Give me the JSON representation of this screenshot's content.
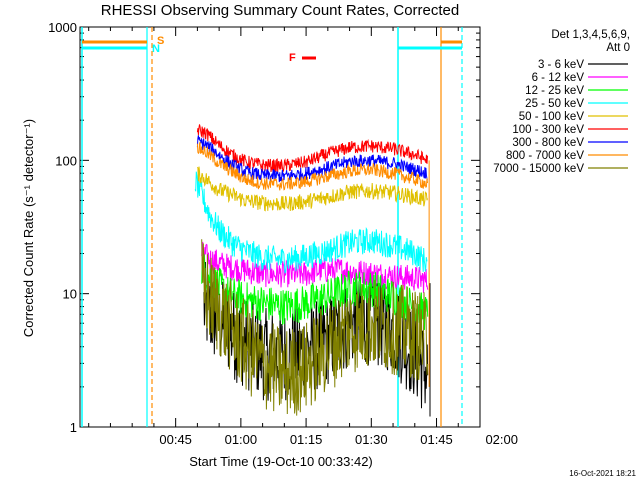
{
  "chart_data": {
    "type": "line",
    "title": "RHESSI Observing Summary Count Rates, Corrected",
    "xlabel": "Start Time (19-Oct-10 00:33:42)",
    "ylabel": "Corrected Count Rate (s⁻¹ detector⁻¹)",
    "y_scale": "log",
    "ylim": [
      1,
      1000
    ],
    "xlim_min": [
      -22,
      70
    ],
    "x_ticks": [
      "00:45",
      "01:00",
      "01:15",
      "01:30",
      "01:45",
      "02:00"
    ],
    "x_tick_minutes": [
      0,
      15,
      30,
      45,
      60,
      75
    ],
    "y_ticks": [
      1,
      10,
      100,
      1000
    ],
    "y_tick_labels": [
      "1",
      "10",
      "100",
      "1000"
    ],
    "legend_header": [
      "Det 1,3,4,5,6,9,",
      "Att 0"
    ],
    "legend_position": "top-right",
    "grid": false,
    "series": [
      {
        "name": "3 - 6 keV",
        "color": "#000000",
        "points": [
          [
            6.5,
            8
          ],
          [
            10,
            6
          ],
          [
            15,
            4.5
          ],
          [
            20,
            3.5
          ],
          [
            25,
            3.5
          ],
          [
            30,
            3.7
          ],
          [
            35,
            4.5
          ],
          [
            40,
            6
          ],
          [
            45,
            6.5
          ],
          [
            50,
            5.5
          ],
          [
            55,
            3.5
          ],
          [
            58,
            2.5
          ]
        ]
      },
      {
        "name": "6 - 12 keV",
        "color": "#ff00ff",
        "points": [
          [
            6,
            20
          ],
          [
            8,
            18
          ],
          [
            12,
            16
          ],
          [
            16,
            15
          ],
          [
            20,
            14
          ],
          [
            25,
            14
          ],
          [
            30,
            14
          ],
          [
            33,
            15
          ],
          [
            38,
            15
          ],
          [
            42,
            14.5
          ],
          [
            46,
            14
          ],
          [
            50,
            13.5
          ],
          [
            55,
            13
          ],
          [
            58,
            12.5
          ]
        ]
      },
      {
        "name": "12 - 25 keV",
        "color": "#00ff00",
        "points": [
          [
            6,
            16
          ],
          [
            8,
            13
          ],
          [
            12,
            10
          ],
          [
            16,
            9
          ],
          [
            20,
            8.5
          ],
          [
            25,
            8
          ],
          [
            30,
            8.5
          ],
          [
            35,
            9.5
          ],
          [
            40,
            11
          ],
          [
            45,
            11
          ],
          [
            50,
            9.5
          ],
          [
            55,
            8
          ],
          [
            58,
            7
          ]
        ]
      },
      {
        "name": "25 - 50 keV",
        "color": "#00ffff",
        "points": [
          [
            4.5,
            70
          ],
          [
            6,
            55
          ],
          [
            8,
            38
          ],
          [
            10,
            30
          ],
          [
            13,
            24
          ],
          [
            16,
            21
          ],
          [
            20,
            18.5
          ],
          [
            25,
            18
          ],
          [
            30,
            19
          ],
          [
            35,
            21
          ],
          [
            40,
            24
          ],
          [
            45,
            25
          ],
          [
            50,
            23
          ],
          [
            55,
            20
          ],
          [
            58,
            17
          ]
        ]
      },
      {
        "name": "50 - 100 keV",
        "color": "#e0c000",
        "points": [
          [
            5,
            80
          ],
          [
            7,
            72
          ],
          [
            10,
            60
          ],
          [
            13,
            55
          ],
          [
            16,
            50
          ],
          [
            20,
            48
          ],
          [
            25,
            47
          ],
          [
            30,
            49
          ],
          [
            35,
            53
          ],
          [
            40,
            58
          ],
          [
            45,
            59
          ],
          [
            50,
            57
          ],
          [
            55,
            53
          ],
          [
            58,
            50
          ]
        ]
      },
      {
        "name": "100 - 300 keV",
        "color": "#ff0000",
        "points": [
          [
            5,
            170
          ],
          [
            7,
            160
          ],
          [
            10,
            130
          ],
          [
            13,
            110
          ],
          [
            16,
            98
          ],
          [
            20,
            92
          ],
          [
            25,
            91
          ],
          [
            30,
            97
          ],
          [
            35,
            112
          ],
          [
            40,
            125
          ],
          [
            45,
            128
          ],
          [
            50,
            122
          ],
          [
            55,
            110
          ],
          [
            58,
            100
          ]
        ]
      },
      {
        "name": "300 - 800 keV",
        "color": "#0000ff",
        "points": [
          [
            5,
            140
          ],
          [
            7,
            130
          ],
          [
            10,
            110
          ],
          [
            13,
            92
          ],
          [
            16,
            82
          ],
          [
            20,
            77
          ],
          [
            25,
            76
          ],
          [
            30,
            80
          ],
          [
            35,
            88
          ],
          [
            40,
            98
          ],
          [
            45,
            100
          ],
          [
            50,
            95
          ],
          [
            55,
            85
          ],
          [
            58,
            80
          ]
        ]
      },
      {
        "name": "800 - 7000 keV",
        "color": "#ff8c00",
        "points": [
          [
            5,
            125
          ],
          [
            7,
            115
          ],
          [
            10,
            95
          ],
          [
            13,
            82
          ],
          [
            16,
            72
          ],
          [
            20,
            67
          ],
          [
            25,
            66
          ],
          [
            30,
            69
          ],
          [
            35,
            76
          ],
          [
            40,
            83
          ],
          [
            45,
            85
          ],
          [
            50,
            80
          ],
          [
            55,
            72
          ],
          [
            58,
            66
          ]
        ]
      },
      {
        "name": "7000 - 15000 keV",
        "color": "#808000",
        "points": [
          [
            6,
            12
          ],
          [
            8,
            9
          ],
          [
            12,
            6
          ],
          [
            16,
            4
          ],
          [
            20,
            3
          ],
          [
            25,
            2.5
          ],
          [
            30,
            2.8
          ],
          [
            35,
            4
          ],
          [
            40,
            5.5
          ],
          [
            45,
            6
          ],
          [
            50,
            5.5
          ],
          [
            55,
            5
          ],
          [
            58,
            4.5
          ]
        ]
      }
    ],
    "event_markers": [
      {
        "label": "S",
        "color": "#ff8c00"
      },
      {
        "label": "N",
        "color": "#00ffff"
      },
      {
        "label": "F",
        "color": "#ff0000"
      }
    ],
    "footer_timestamp": "16-Oct-2021 18:21"
  }
}
